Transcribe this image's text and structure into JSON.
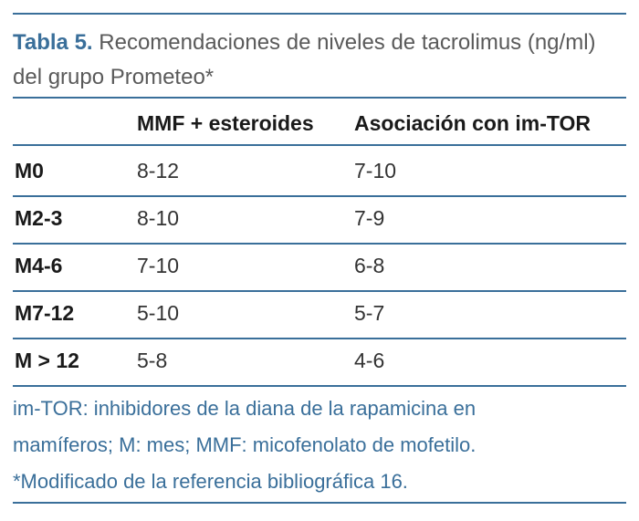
{
  "caption": {
    "label": "Tabla 5.",
    "text": " Recomendaciones de niveles de tacrolimus (ng/ml) del grupo Prometeo*"
  },
  "columns": [
    "MMF + esteroides",
    "Asociación con im-TOR"
  ],
  "rows": [
    {
      "label": "M0",
      "v1": "8-12",
      "v2": "7-10"
    },
    {
      "label": "M2-3",
      "v1": "8-10",
      "v2": "7-9"
    },
    {
      "label": "M4-6",
      "v1": "7-10",
      "v2": "6-8"
    },
    {
      "label": "M7-12",
      "v1": "5-10",
      "v2": "5-7"
    },
    {
      "label": "M > 12",
      "v1": "5-8",
      "v2": "4-6"
    }
  ],
  "footnote": {
    "line1": "im-TOR: inhibidores de la diana de la rapamicina en",
    "line2": "mamíferos; M: mes; MMF: micofenolato de mofetilo.",
    "line3": "*Modificado de la referencia bibliográfica 16."
  },
  "colors": {
    "accent": "#3a6f9a",
    "text": "#1a1a1a"
  }
}
